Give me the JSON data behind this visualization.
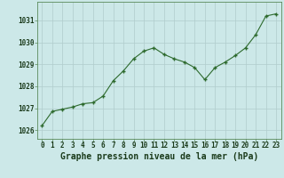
{
  "hours": [
    0,
    1,
    2,
    3,
    4,
    5,
    6,
    7,
    8,
    9,
    10,
    11,
    12,
    13,
    14,
    15,
    16,
    17,
    18,
    19,
    20,
    21,
    22,
    23
  ],
  "pressure": [
    1026.2,
    1026.85,
    1026.95,
    1027.05,
    1027.2,
    1027.25,
    1027.55,
    1028.25,
    1028.7,
    1029.25,
    1029.6,
    1029.75,
    1029.45,
    1029.25,
    1029.1,
    1028.85,
    1028.3,
    1028.85,
    1029.1,
    1029.4,
    1029.75,
    1030.35,
    1031.2,
    1031.3
  ],
  "line_color": "#2d6a2d",
  "marker_color": "#2d6a2d",
  "bg_color": "#cce8e8",
  "grid_color": "#b0cccc",
  "title": "Graphe pression niveau de la mer (hPa)",
  "ylabel_ticks": [
    1026,
    1027,
    1028,
    1029,
    1030,
    1031
  ],
  "xlim": [
    -0.5,
    23.5
  ],
  "ylim": [
    1025.6,
    1031.85
  ],
  "title_fontsize": 7.0,
  "tick_fontsize": 5.5
}
